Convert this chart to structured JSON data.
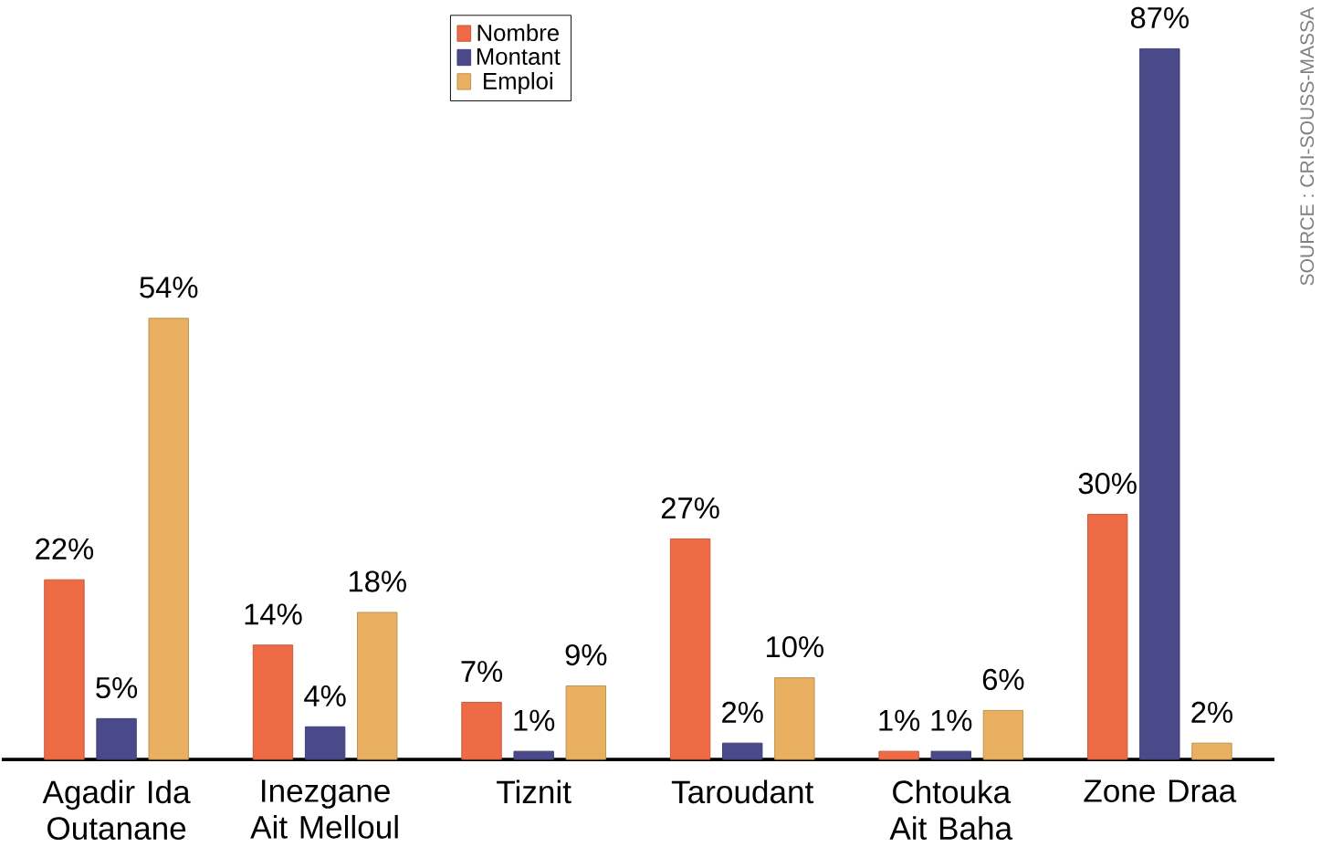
{
  "chart_data": {
    "type": "bar",
    "categories": [
      "Agadir Ida Outanane",
      "Inezgane Ait Melloul",
      "Tiznit",
      "Taroudant",
      "Chtouka Ait Baha",
      "Zone Draa"
    ],
    "series": [
      {
        "name": "Nombre",
        "color": "#ef6b45",
        "values": [
          22,
          14,
          7,
          27,
          1,
          30
        ],
        "value_labels": [
          "22%",
          "14%",
          "7%",
          "27%",
          "1%",
          "30%"
        ]
      },
      {
        "name": "Montant",
        "color": "#4a4a8a",
        "values": [
          5,
          4,
          1,
          2,
          1,
          87
        ],
        "value_labels": [
          "5%",
          "4%",
          "1%",
          "2%",
          "1%",
          "87%"
        ]
      },
      {
        "name": "Emploi",
        "color": "#e8b060",
        "values": [
          54,
          18,
          9,
          10,
          6,
          2
        ],
        "value_labels": [
          "54%",
          "18%",
          "9%",
          "10%",
          "6%",
          "2%"
        ]
      }
    ],
    "legend": "top",
    "annotations": [
      "SOURCE : CRI-SOUSS-MASSA"
    ]
  }
}
